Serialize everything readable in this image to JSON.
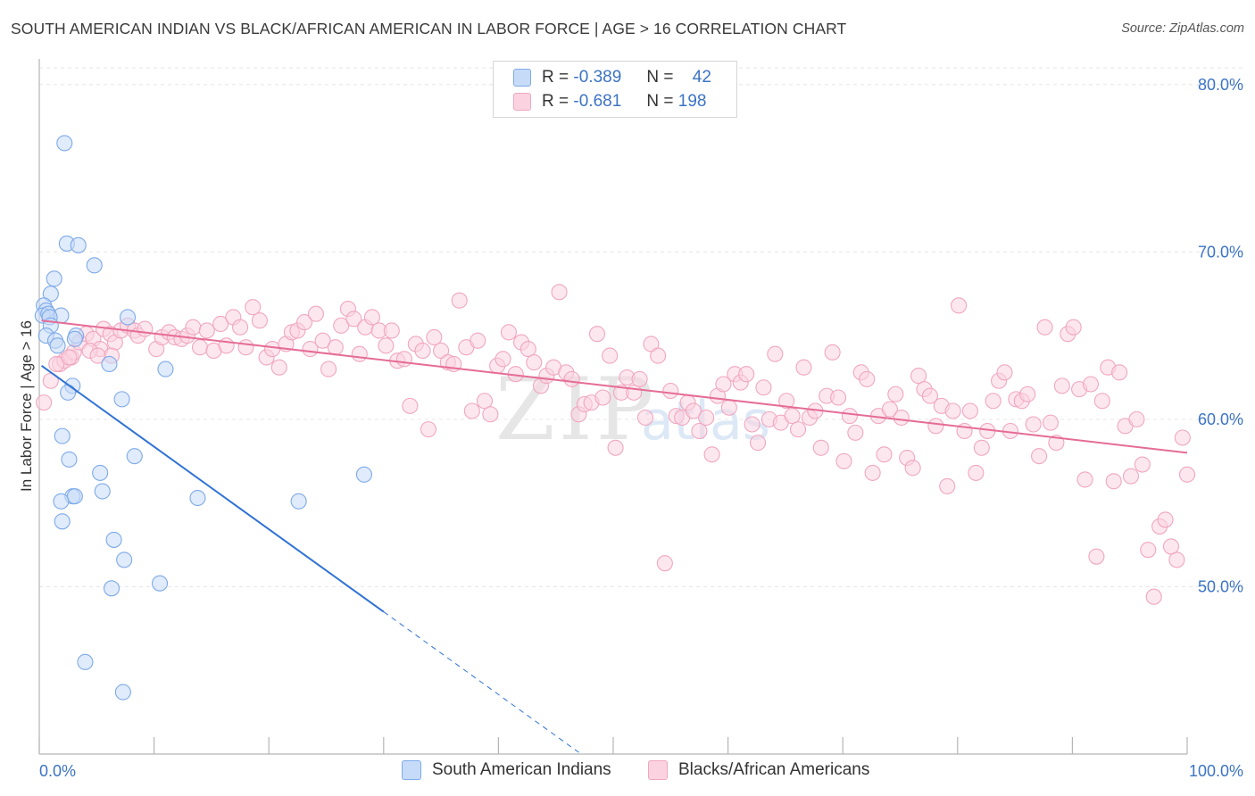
{
  "title": "SOUTH AMERICAN INDIAN VS BLACK/AFRICAN AMERICAN IN LABOR FORCE | AGE > 16 CORRELATION CHART",
  "source": "Source: ZipAtlas.com",
  "watermark": {
    "zip": "ZIP",
    "atlas": "atlas"
  },
  "legend": {
    "r_label": "R =",
    "n_label": "N =",
    "rows": [
      {
        "r": "-0.389",
        "n": "42"
      },
      {
        "r": "-0.681",
        "n": "198"
      }
    ]
  },
  "chart_data": {
    "type": "scatter",
    "title": "SOUTH AMERICAN INDIAN VS BLACK/AFRICAN AMERICAN IN LABOR FORCE | AGE > 16 CORRELATION CHART",
    "xlabel": "",
    "ylabel": "In Labor Force | Age > 16",
    "xlim": [
      0,
      100
    ],
    "ylim": [
      40,
      81
    ],
    "x_tick_labels": [
      "0.0%",
      "100.0%"
    ],
    "y_ticks": [
      50,
      60,
      70,
      80
    ],
    "y_tick_labels": [
      "50.0%",
      "60.0%",
      "70.0%",
      "80.0%"
    ],
    "series": [
      {
        "name": "South American Indians",
        "color": "#7eaae8",
        "fill": "#c6dbf7",
        "line_color": "#2f72d4",
        "r": -0.389,
        "n": 42,
        "trend": {
          "x0": 0.2,
          "y0": 63.2,
          "x1": 30,
          "y1": 48.5,
          "dash_x1": 47,
          "dash_y1": 40.1
        },
        "points": [
          [
            2.2,
            76.5
          ],
          [
            2.4,
            70.5
          ],
          [
            3.4,
            70.4
          ],
          [
            4.8,
            69.2
          ],
          [
            1.3,
            68.4
          ],
          [
            1.0,
            67.5
          ],
          [
            0.4,
            66.8
          ],
          [
            0.6,
            66.5
          ],
          [
            0.3,
            66.2
          ],
          [
            0.8,
            66.3
          ],
          [
            1.9,
            66.2
          ],
          [
            0.9,
            66.1
          ],
          [
            7.7,
            66.1
          ],
          [
            1.0,
            65.6
          ],
          [
            0.6,
            65.0
          ],
          [
            3.2,
            65.0
          ],
          [
            3.1,
            64.8
          ],
          [
            1.4,
            64.7
          ],
          [
            1.6,
            64.4
          ],
          [
            6.1,
            63.3
          ],
          [
            11.0,
            63.0
          ],
          [
            2.9,
            62.0
          ],
          [
            2.5,
            61.6
          ],
          [
            7.2,
            61.2
          ],
          [
            2.0,
            59.0
          ],
          [
            8.3,
            57.8
          ],
          [
            2.6,
            57.6
          ],
          [
            5.3,
            56.8
          ],
          [
            28.3,
            56.7
          ],
          [
            5.5,
            55.7
          ],
          [
            2.9,
            55.4
          ],
          [
            3.1,
            55.4
          ],
          [
            1.9,
            55.1
          ],
          [
            13.8,
            55.3
          ],
          [
            22.6,
            55.1
          ],
          [
            2.0,
            53.9
          ],
          [
            6.5,
            52.8
          ],
          [
            7.4,
            51.6
          ],
          [
            10.5,
            50.2
          ],
          [
            6.3,
            49.9
          ],
          [
            4.0,
            45.5
          ],
          [
            7.3,
            43.7
          ]
        ]
      },
      {
        "name": "Blacks/African Americans",
        "color": "#f0a6bf",
        "fill": "#fbd3e0",
        "line_color": "#e56c96",
        "r": -0.681,
        "n": 198,
        "trend": {
          "x0": 0.2,
          "y0": 65.9,
          "x1": 100,
          "y1": 58.0
        },
        "points": [
          [
            0.4,
            61.0
          ],
          [
            1.0,
            62.3
          ],
          [
            1.8,
            63.3
          ],
          [
            2.2,
            63.5
          ],
          [
            2.8,
            63.7
          ],
          [
            3.0,
            64.0
          ],
          [
            3.5,
            64.6
          ],
          [
            4.1,
            65.1
          ],
          [
            4.7,
            64.8
          ],
          [
            5.3,
            64.2
          ],
          [
            5.6,
            65.4
          ],
          [
            6.2,
            65.1
          ],
          [
            6.6,
            64.6
          ],
          [
            6.3,
            63.8
          ],
          [
            7.1,
            65.3
          ],
          [
            7.7,
            65.6
          ],
          [
            8.3,
            65.3
          ],
          [
            8.6,
            65.0
          ],
          [
            9.2,
            65.4
          ],
          [
            10.2,
            64.2
          ],
          [
            10.7,
            64.9
          ],
          [
            11.3,
            65.2
          ],
          [
            11.8,
            64.9
          ],
          [
            12.4,
            64.8
          ],
          [
            12.9,
            65.0
          ],
          [
            13.4,
            65.5
          ],
          [
            14.0,
            64.3
          ],
          [
            14.6,
            65.3
          ],
          [
            15.2,
            64.1
          ],
          [
            15.8,
            65.7
          ],
          [
            16.3,
            64.4
          ],
          [
            16.9,
            66.1
          ],
          [
            17.5,
            65.5
          ],
          [
            18.0,
            64.3
          ],
          [
            18.6,
            66.7
          ],
          [
            19.2,
            65.9
          ],
          [
            19.8,
            63.7
          ],
          [
            20.3,
            64.2
          ],
          [
            20.9,
            63.1
          ],
          [
            21.5,
            64.5
          ],
          [
            22.0,
            65.2
          ],
          [
            22.5,
            65.3
          ],
          [
            23.1,
            65.8
          ],
          [
            23.6,
            64.2
          ],
          [
            24.1,
            66.3
          ],
          [
            24.7,
            64.7
          ],
          [
            25.2,
            63.0
          ],
          [
            25.8,
            64.3
          ],
          [
            26.3,
            65.6
          ],
          [
            26.9,
            66.6
          ],
          [
            27.4,
            66.0
          ],
          [
            27.9,
            63.9
          ],
          [
            28.4,
            65.5
          ],
          [
            29.0,
            66.1
          ],
          [
            29.6,
            65.3
          ],
          [
            30.2,
            64.4
          ],
          [
            30.7,
            65.3
          ],
          [
            31.2,
            63.5
          ],
          [
            31.8,
            63.6
          ],
          [
            32.3,
            60.8
          ],
          [
            32.8,
            64.5
          ],
          [
            33.4,
            64.1
          ],
          [
            33.9,
            59.4
          ],
          [
            34.4,
            64.9
          ],
          [
            35.0,
            64.1
          ],
          [
            35.6,
            63.4
          ],
          [
            36.1,
            63.3
          ],
          [
            36.6,
            67.1
          ],
          [
            37.2,
            64.3
          ],
          [
            37.7,
            60.5
          ],
          [
            38.2,
            64.7
          ],
          [
            38.8,
            61.1
          ],
          [
            39.3,
            60.3
          ],
          [
            39.9,
            63.2
          ],
          [
            40.4,
            63.6
          ],
          [
            40.9,
            65.2
          ],
          [
            41.5,
            62.7
          ],
          [
            42.0,
            64.6
          ],
          [
            42.6,
            64.2
          ],
          [
            43.1,
            63.4
          ],
          [
            43.7,
            62.0
          ],
          [
            44.2,
            62.6
          ],
          [
            44.8,
            63.1
          ],
          [
            45.3,
            67.6
          ],
          [
            45.9,
            62.8
          ],
          [
            46.4,
            62.4
          ],
          [
            47.0,
            60.3
          ],
          [
            47.5,
            60.9
          ],
          [
            48.1,
            61.0
          ],
          [
            48.6,
            65.1
          ],
          [
            49.1,
            61.3
          ],
          [
            49.7,
            63.8
          ],
          [
            50.2,
            58.3
          ],
          [
            50.7,
            61.6
          ],
          [
            51.2,
            62.5
          ],
          [
            51.8,
            61.6
          ],
          [
            52.3,
            62.4
          ],
          [
            52.8,
            60.1
          ],
          [
            53.3,
            64.5
          ],
          [
            53.9,
            63.8
          ],
          [
            54.5,
            51.4
          ],
          [
            55.0,
            61.7
          ],
          [
            55.5,
            60.2
          ],
          [
            56.0,
            60.1
          ],
          [
            56.5,
            61.0
          ],
          [
            57.0,
            60.5
          ],
          [
            57.5,
            59.3
          ],
          [
            58.1,
            60.1
          ],
          [
            58.6,
            57.9
          ],
          [
            59.1,
            61.4
          ],
          [
            59.6,
            62.1
          ],
          [
            60.1,
            60.7
          ],
          [
            60.6,
            62.7
          ],
          [
            61.1,
            62.2
          ],
          [
            61.6,
            62.7
          ],
          [
            62.1,
            59.7
          ],
          [
            62.6,
            58.6
          ],
          [
            63.1,
            61.9
          ],
          [
            63.6,
            60.0
          ],
          [
            64.1,
            63.9
          ],
          [
            64.6,
            59.8
          ],
          [
            65.1,
            61.1
          ],
          [
            65.6,
            60.2
          ],
          [
            66.1,
            59.4
          ],
          [
            66.6,
            63.1
          ],
          [
            67.1,
            60.1
          ],
          [
            67.6,
            60.5
          ],
          [
            68.1,
            58.3
          ],
          [
            68.6,
            61.4
          ],
          [
            69.1,
            64.0
          ],
          [
            69.6,
            61.3
          ],
          [
            70.1,
            57.5
          ],
          [
            70.6,
            60.2
          ],
          [
            71.1,
            59.2
          ],
          [
            71.6,
            62.8
          ],
          [
            72.1,
            62.4
          ],
          [
            72.6,
            56.8
          ],
          [
            73.1,
            60.2
          ],
          [
            73.6,
            57.9
          ],
          [
            74.1,
            60.6
          ],
          [
            74.6,
            61.5
          ],
          [
            75.1,
            60.1
          ],
          [
            75.6,
            57.7
          ],
          [
            76.1,
            57.1
          ],
          [
            76.6,
            62.6
          ],
          [
            77.1,
            61.8
          ],
          [
            77.6,
            61.4
          ],
          [
            78.1,
            59.6
          ],
          [
            78.6,
            60.8
          ],
          [
            79.1,
            56.0
          ],
          [
            79.6,
            60.5
          ],
          [
            80.1,
            66.8
          ],
          [
            80.6,
            59.3
          ],
          [
            81.1,
            60.5
          ],
          [
            81.6,
            56.8
          ],
          [
            82.1,
            58.3
          ],
          [
            82.6,
            59.3
          ],
          [
            83.1,
            61.1
          ],
          [
            83.6,
            62.3
          ],
          [
            84.1,
            62.8
          ],
          [
            84.6,
            59.3
          ],
          [
            85.1,
            61.2
          ],
          [
            85.6,
            61.1
          ],
          [
            86.1,
            61.5
          ],
          [
            86.6,
            59.7
          ],
          [
            87.1,
            57.8
          ],
          [
            87.6,
            65.5
          ],
          [
            88.1,
            59.8
          ],
          [
            88.6,
            58.6
          ],
          [
            89.1,
            62.0
          ],
          [
            89.6,
            65.1
          ],
          [
            90.1,
            65.5
          ],
          [
            90.6,
            61.8
          ],
          [
            91.1,
            56.4
          ],
          [
            91.6,
            62.1
          ],
          [
            92.1,
            51.8
          ],
          [
            92.6,
            61.1
          ],
          [
            93.1,
            63.1
          ],
          [
            93.6,
            56.3
          ],
          [
            94.1,
            62.8
          ],
          [
            94.6,
            59.6
          ],
          [
            95.1,
            56.6
          ],
          [
            95.6,
            60.0
          ],
          [
            96.1,
            57.3
          ],
          [
            96.6,
            52.2
          ],
          [
            97.1,
            49.4
          ],
          [
            97.6,
            53.6
          ],
          [
            98.1,
            54.0
          ],
          [
            98.6,
            52.4
          ],
          [
            99.1,
            51.6
          ],
          [
            99.6,
            58.9
          ],
          [
            100.0,
            56.7
          ],
          [
            1.5,
            63.3
          ],
          [
            2.6,
            63.7
          ],
          [
            4.4,
            64.1
          ],
          [
            5.1,
            63.8
          ]
        ]
      }
    ]
  },
  "bottom_legend": [
    "South American Indians",
    "Blacks/African Americans"
  ]
}
